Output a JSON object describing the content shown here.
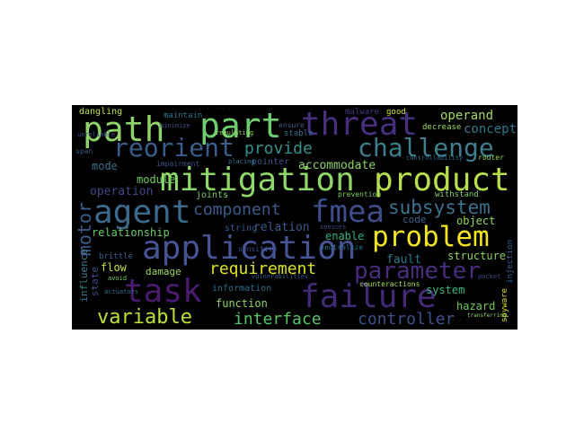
{
  "wordcloud": {
    "background": "#000000",
    "words": [
      {
        "text": "path",
        "color": "#8fd26a"
      },
      {
        "text": "part",
        "color": "#6fce70"
      },
      {
        "text": "threat",
        "color": "#472f7d"
      },
      {
        "text": "reorient",
        "color": "#3a5e8c"
      },
      {
        "text": "challenge",
        "color": "#3f7f8d"
      },
      {
        "text": "mitigation",
        "color": "#8fd668"
      },
      {
        "text": "product",
        "color": "#b7de4c"
      },
      {
        "text": "provide",
        "color": "#31918c"
      },
      {
        "text": "agent",
        "color": "#3b6a8d"
      },
      {
        "text": "fmea",
        "color": "#3d4e8a"
      },
      {
        "text": "component",
        "color": "#3a5c8c"
      },
      {
        "text": "subsystem",
        "color": "#3e708e"
      },
      {
        "text": "application",
        "color": "#465494"
      },
      {
        "text": "problem",
        "color": "#f2e41e"
      },
      {
        "text": "parameter",
        "color": "#472d7b"
      },
      {
        "text": "task",
        "color": "#4a1a6e"
      },
      {
        "text": "failure",
        "color": "#432a74"
      },
      {
        "text": "requirement",
        "color": "#e0e31d"
      },
      {
        "text": "variable",
        "color": "#bddf3a"
      },
      {
        "text": "interface",
        "color": "#55c667"
      },
      {
        "text": "controller",
        "color": "#3c538a"
      },
      {
        "text": "operand",
        "color": "#a3d95a"
      },
      {
        "text": "concept",
        "color": "#2e7a8e"
      },
      {
        "text": "accommodate",
        "color": "#8bd46a"
      },
      {
        "text": "motor",
        "color": "#3b5d8d"
      },
      {
        "text": "module",
        "color": "#6ccd5a"
      },
      {
        "text": "operation",
        "color": "#3f4988"
      },
      {
        "text": "mode",
        "color": "#3b6f8e"
      },
      {
        "text": "relation",
        "color": "#3a5a8c"
      },
      {
        "text": "relationship",
        "color": "#6acb6b"
      },
      {
        "text": "enable",
        "color": "#30b47c"
      },
      {
        "text": "object",
        "color": "#95d85e"
      },
      {
        "text": "structure",
        "color": "#8ad166"
      },
      {
        "text": "fault",
        "color": "#2a788e"
      },
      {
        "text": "code",
        "color": "#36658c"
      },
      {
        "text": "flow",
        "color": "#c6e03b"
      },
      {
        "text": "damage",
        "color": "#9dd85b"
      },
      {
        "text": "influence",
        "color": "#3c7e8e"
      },
      {
        "text": "state",
        "color": "#3f4d89"
      },
      {
        "text": "system",
        "color": "#35b779"
      },
      {
        "text": "hazard",
        "color": "#6ccd5a"
      },
      {
        "text": "function",
        "color": "#8ed568"
      },
      {
        "text": "information",
        "color": "#2f6f8e"
      },
      {
        "text": "counteractions",
        "color": "#a8dd4f"
      },
      {
        "text": "spyware",
        "color": "#dfe318"
      },
      {
        "text": "string",
        "color": "#355f8d"
      },
      {
        "text": "joints",
        "color": "#7bd06b"
      },
      {
        "text": "sensitive",
        "color": "#3d4e8b"
      },
      {
        "text": "pointer",
        "color": "#3a528b"
      },
      {
        "text": "stable",
        "color": "#2d708e"
      },
      {
        "text": "ensure",
        "color": "#3b5a8c"
      },
      {
        "text": "maintain",
        "color": "#2c728e"
      },
      {
        "text": "dangling",
        "color": "#bfe23b"
      },
      {
        "text": "malware",
        "color": "#443983"
      },
      {
        "text": "good",
        "color": "#d7e21a"
      },
      {
        "text": "decrease",
        "color": "#9bd75c"
      },
      {
        "text": "prevention",
        "color": "#7bd163"
      },
      {
        "text": "withstand",
        "color": "#7fd163"
      },
      {
        "text": "injection",
        "color": "#35608d"
      },
      {
        "text": "brittle",
        "color": "#3a5f8d"
      },
      {
        "text": "router",
        "color": "#94d85c"
      },
      {
        "text": "neutralize",
        "color": "#2f6d8e"
      },
      {
        "text": "sensors",
        "color": "#3f4c89"
      },
      {
        "text": "controllability",
        "color": "#2e6e8e"
      },
      {
        "text": "impairment",
        "color": "#3b548c"
      },
      {
        "text": "regulating",
        "color": "#97d95a"
      },
      {
        "text": "minimize",
        "color": "#3d4d8a"
      },
      {
        "text": "placing",
        "color": "#2a7b8e"
      },
      {
        "text": "unreliable",
        "color": "#3d4f8a"
      },
      {
        "text": "span",
        "color": "#3b5b8c"
      },
      {
        "text": "actuators",
        "color": "#2e6f8e"
      },
      {
        "text": "avoid",
        "color": "#7cd163"
      },
      {
        "text": "vulnerabilities",
        "color": "#3a5b8c"
      },
      {
        "text": "packet",
        "color": "#3e4b89"
      },
      {
        "text": "transferring",
        "color": "#8fd568"
      }
    ]
  }
}
